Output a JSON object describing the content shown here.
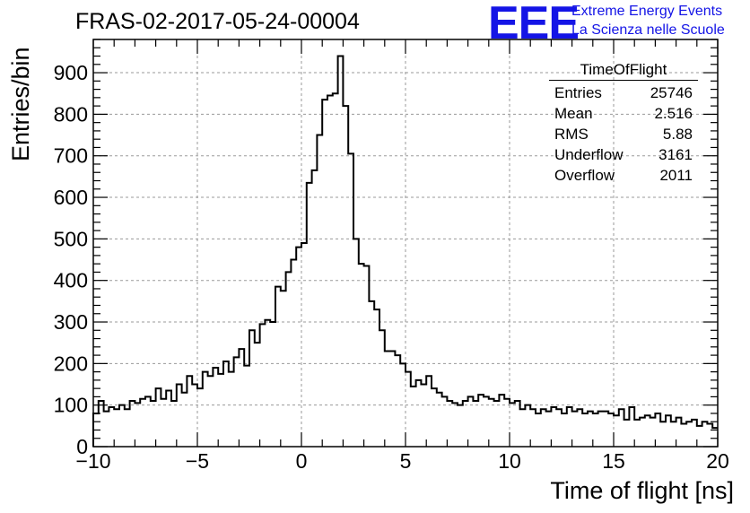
{
  "header": {
    "title": "FRAS-02-2017-05-24-00004",
    "logo_text": "EEE",
    "logo_line1": "Extreme Energy Events",
    "logo_line2": "La Scienza nelle Scuole"
  },
  "stats_box": {
    "title": "TimeOfFlight",
    "rows": [
      {
        "label": "Entries",
        "value": "25746"
      },
      {
        "label": "Mean",
        "value": "2.516"
      },
      {
        "label": "RMS",
        "value": "5.88"
      },
      {
        "label": "Underflow",
        "value": "3161"
      },
      {
        "label": "Overflow",
        "value": "2011"
      }
    ]
  },
  "colors": {
    "line": "#000000",
    "grid": "#9a9a9a",
    "accent": "#1414e6"
  },
  "chart_data": {
    "type": "bar",
    "style": "step-histogram",
    "title": "FRAS-02-2017-05-24-00004",
    "xlabel": "Time of flight [ns]",
    "ylabel": "Entries/bin",
    "xlim": [
      -10,
      20
    ],
    "ylim": [
      0,
      980
    ],
    "bin_start": -10,
    "bin_width": 0.25,
    "x_ticks": [
      -10,
      -5,
      0,
      5,
      10,
      15,
      20
    ],
    "y_ticks": [
      0,
      100,
      200,
      300,
      400,
      500,
      600,
      700,
      800,
      900
    ],
    "grid": true,
    "legend": "none",
    "values": [
      80,
      110,
      85,
      95,
      90,
      100,
      90,
      110,
      105,
      115,
      120,
      110,
      140,
      115,
      135,
      110,
      150,
      130,
      170,
      150,
      140,
      180,
      170,
      190,
      175,
      205,
      180,
      215,
      235,
      195,
      280,
      250,
      295,
      305,
      300,
      385,
      375,
      420,
      450,
      480,
      490,
      635,
      665,
      750,
      835,
      845,
      850,
      940,
      820,
      705,
      500,
      440,
      435,
      350,
      330,
      280,
      230,
      230,
      220,
      200,
      180,
      145,
      160,
      150,
      170,
      140,
      130,
      120,
      110,
      105,
      100,
      110,
      120,
      110,
      125,
      120,
      115,
      110,
      125,
      115,
      105,
      110,
      90,
      100,
      90,
      80,
      90,
      85,
      95,
      90,
      80,
      95,
      85,
      90,
      80,
      85,
      80,
      85,
      85,
      80,
      75,
      90,
      65,
      95,
      65,
      70,
      75,
      70,
      80,
      60,
      75,
      60,
      70,
      55,
      60,
      65,
      50,
      60,
      55,
      45
    ]
  }
}
